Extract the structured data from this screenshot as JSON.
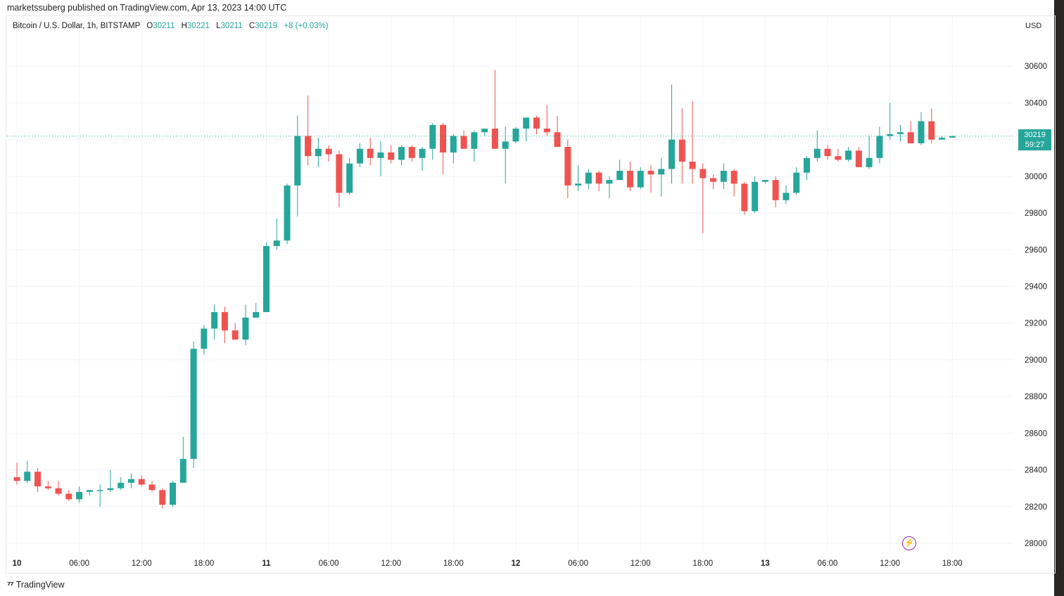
{
  "header": {
    "publisher": "marketssuberg published on TradingView.com, Apr 13, 2023 14:00 UTC"
  },
  "symbol": {
    "name": "Bitcoin / U.S. Dollar, 1h, BITSTAMP",
    "o_label": "O",
    "o_value": "30211",
    "h_label": "H",
    "h_value": "30221",
    "l_label": "L",
    "l_value": "30211",
    "c_label": "C",
    "c_value": "30219",
    "change": "+8 (+0.03%)"
  },
  "currency": "USD",
  "last_price": {
    "price": "30219",
    "countdown": "59:27"
  },
  "footer": {
    "brand": "TradingView",
    "logo_icon": "tradingview-logo-icon"
  },
  "colors": {
    "up": "#26a69a",
    "down": "#ef5350",
    "grid": "#f0f3fa",
    "accent_bolt": "#9c27b0"
  },
  "chart_data": {
    "type": "candlestick",
    "interval": "1h",
    "ylim": [
      27950,
      30800
    ],
    "y_ticks": [
      28000,
      28200,
      28400,
      28600,
      28800,
      29000,
      29200,
      29400,
      29600,
      29800,
      30000,
      30200,
      30400,
      30600
    ],
    "x_ticks": [
      {
        "label": "10",
        "index": 0,
        "bold": true
      },
      {
        "label": "06:00",
        "index": 6
      },
      {
        "label": "12:00",
        "index": 12
      },
      {
        "label": "18:00",
        "index": 18
      },
      {
        "label": "11",
        "index": 24,
        "bold": true
      },
      {
        "label": "06:00",
        "index": 30
      },
      {
        "label": "12:00",
        "index": 36
      },
      {
        "label": "18:00",
        "index": 42
      },
      {
        "label": "12",
        "index": 48,
        "bold": true
      },
      {
        "label": "06:00",
        "index": 54
      },
      {
        "label": "12:00",
        "index": 60
      },
      {
        "label": "18:00",
        "index": 66
      },
      {
        "label": "13",
        "index": 72,
        "bold": true
      },
      {
        "label": "06:00",
        "index": 78
      },
      {
        "label": "12:00",
        "index": 84
      },
      {
        "label": "18:00",
        "index": 90
      }
    ],
    "candles": [
      [
        28360,
        28440,
        28320,
        28340
      ],
      [
        28340,
        28450,
        28330,
        28390
      ],
      [
        28390,
        28410,
        28280,
        28310
      ],
      [
        28310,
        28340,
        28290,
        28300
      ],
      [
        28300,
        28340,
        28260,
        28270
      ],
      [
        28270,
        28290,
        28230,
        28240
      ],
      [
        28240,
        28310,
        28220,
        28280
      ],
      [
        28280,
        28290,
        28260,
        28290
      ],
      [
        28290,
        28320,
        28200,
        28290
      ],
      [
        28290,
        28400,
        28280,
        28300
      ],
      [
        28300,
        28360,
        28290,
        28330
      ],
      [
        28330,
        28380,
        28300,
        28350
      ],
      [
        28350,
        28370,
        28310,
        28320
      ],
      [
        28320,
        28340,
        28280,
        28290
      ],
      [
        28290,
        28300,
        28190,
        28210
      ],
      [
        28210,
        28340,
        28200,
        28330
      ],
      [
        28330,
        28580,
        28330,
        28460
      ],
      [
        28460,
        29100,
        28410,
        29060
      ],
      [
        29060,
        29190,
        29030,
        29170
      ],
      [
        29170,
        29300,
        29110,
        29260
      ],
      [
        29260,
        29290,
        29090,
        29160
      ],
      [
        29160,
        29200,
        29110,
        29110
      ],
      [
        29110,
        29300,
        29080,
        29230
      ],
      [
        29230,
        29310,
        29230,
        29260
      ],
      [
        29260,
        29640,
        29260,
        29620
      ],
      [
        29620,
        29770,
        29600,
        29650
      ],
      [
        29650,
        29960,
        29630,
        29950
      ],
      [
        29950,
        30330,
        29780,
        30220
      ],
      [
        30220,
        30440,
        30060,
        30110
      ],
      [
        30110,
        30210,
        30050,
        30150
      ],
      [
        30150,
        30170,
        30080,
        30120
      ],
      [
        30120,
        30140,
        29830,
        29910
      ],
      [
        29910,
        30100,
        29900,
        30070
      ],
      [
        30070,
        30180,
        30050,
        30150
      ],
      [
        30150,
        30210,
        30060,
        30100
      ],
      [
        30100,
        30190,
        30000,
        30130
      ],
      [
        30130,
        30170,
        30070,
        30090
      ],
      [
        30090,
        30170,
        30060,
        30160
      ],
      [
        30160,
        30170,
        30080,
        30100
      ],
      [
        30100,
        30160,
        30030,
        30150
      ],
      [
        30150,
        30290,
        30090,
        30280
      ],
      [
        30280,
        30290,
        30010,
        30130
      ],
      [
        30130,
        30230,
        30070,
        30220
      ],
      [
        30220,
        30250,
        30160,
        30150
      ],
      [
        30150,
        30250,
        30080,
        30240
      ],
      [
        30240,
        30240,
        30220,
        30260
      ],
      [
        30260,
        30580,
        30150,
        30150
      ],
      [
        30150,
        30270,
        29960,
        30190
      ],
      [
        30190,
        30270,
        30180,
        30260
      ],
      [
        30260,
        30320,
        30190,
        30320
      ],
      [
        30320,
        30330,
        30230,
        30260
      ],
      [
        30260,
        30390,
        30220,
        30240
      ],
      [
        30240,
        30330,
        30170,
        30160
      ],
      [
        30160,
        30200,
        29880,
        29950
      ],
      [
        29950,
        30060,
        29920,
        29960
      ],
      [
        29960,
        30040,
        29930,
        30020
      ],
      [
        30020,
        30030,
        29920,
        29960
      ],
      [
        29960,
        30000,
        29880,
        29980
      ],
      [
        29980,
        30090,
        29980,
        30030
      ],
      [
        30030,
        30080,
        29920,
        29940
      ],
      [
        29940,
        30050,
        29930,
        30030
      ],
      [
        30030,
        30060,
        29910,
        30010
      ],
      [
        30010,
        30100,
        29890,
        30040
      ],
      [
        30040,
        30500,
        29960,
        30200
      ],
      [
        30200,
        30370,
        29960,
        30080
      ],
      [
        30080,
        30410,
        29960,
        30040
      ],
      [
        30040,
        30070,
        29690,
        29990
      ],
      [
        29990,
        30010,
        29930,
        29970
      ],
      [
        29970,
        30070,
        29930,
        30030
      ],
      [
        30030,
        30040,
        29890,
        29960
      ],
      [
        29960,
        29970,
        29790,
        29810
      ],
      [
        29810,
        30000,
        29800,
        29970
      ],
      [
        29970,
        29980,
        29960,
        29980
      ],
      [
        29980,
        30000,
        29830,
        29870
      ],
      [
        29870,
        29950,
        29850,
        29910
      ],
      [
        29910,
        30050,
        29900,
        30020
      ],
      [
        30020,
        30110,
        29980,
        30100
      ],
      [
        30100,
        30250,
        30080,
        30150
      ],
      [
        30150,
        30170,
        30090,
        30110
      ],
      [
        30110,
        30150,
        30080,
        30090
      ],
      [
        30090,
        30160,
        30080,
        30140
      ],
      [
        30140,
        30160,
        30070,
        30050
      ],
      [
        30050,
        30220,
        30040,
        30100
      ],
      [
        30100,
        30270,
        30070,
        30220
      ],
      [
        30220,
        30400,
        30200,
        30230
      ],
      [
        30230,
        30280,
        30190,
        30240
      ],
      [
        30240,
        30300,
        30190,
        30180
      ],
      [
        30180,
        30350,
        30170,
        30300
      ],
      [
        30300,
        30370,
        30180,
        30200
      ],
      [
        30200,
        30220,
        30200,
        30210
      ],
      [
        30211,
        30221,
        30211,
        30219
      ]
    ]
  }
}
